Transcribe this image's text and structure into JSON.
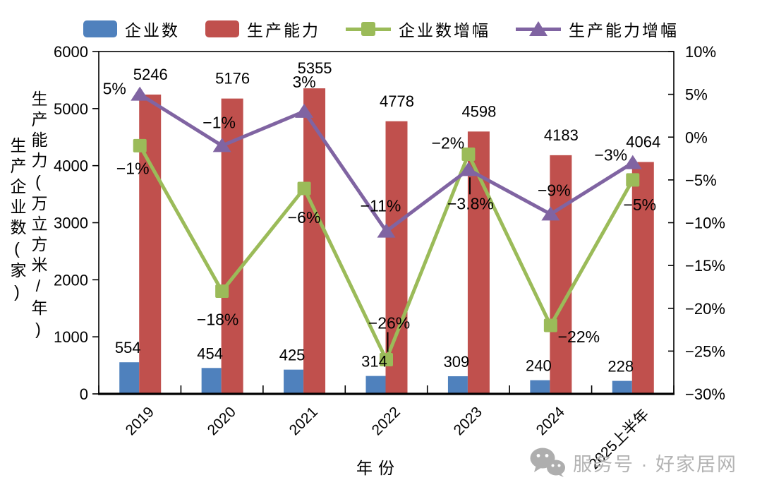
{
  "legend": {
    "items": [
      {
        "label": "企业数",
        "swatch": "bar",
        "color": "#4f81bd"
      },
      {
        "label": "生产能力",
        "swatch": "bar",
        "color": "#c0504d"
      },
      {
        "label": "企业数增幅",
        "swatch": "line-square",
        "color": "#9bbb59"
      },
      {
        "label": "生产能力增幅",
        "swatch": "line-triangle",
        "color": "#8064a2"
      }
    ]
  },
  "chart_data": {
    "type": "bar+line combo, dual axis",
    "categories": [
      "2019",
      "2020",
      "2021",
      "2022",
      "2023",
      "2024",
      "2025上半年"
    ],
    "xlabel": "年份",
    "left_axis": {
      "title_outer": "生产企业数(家)",
      "title_inner": "生产能力(万立方米/年)",
      "min": 0,
      "max": 6000,
      "step": 1000,
      "ticks": [
        "6000",
        "5000",
        "4000",
        "3000",
        "2000",
        "1000",
        "0"
      ]
    },
    "right_axis": {
      "min": -30,
      "max": 10,
      "step": 5,
      "ticks": [
        "10%",
        "5%",
        "0%",
        "−5%",
        "−10%",
        "−15%",
        "−20%",
        "−25%",
        "−30%"
      ]
    },
    "series": [
      {
        "name": "企业数",
        "type": "bar",
        "axis": "left",
        "color": "#4f81bd",
        "values": [
          554,
          454,
          425,
          314,
          309,
          240,
          228
        ],
        "labels": [
          "554",
          "454",
          "425",
          "314",
          "309",
          "240",
          "228"
        ]
      },
      {
        "name": "生产能力",
        "type": "bar",
        "axis": "left",
        "color": "#c0504d",
        "values": [
          5246,
          5176,
          5355,
          4778,
          4598,
          4183,
          4064
        ],
        "labels": [
          "5246",
          "5176",
          "5355",
          "4778",
          "4598",
          "4183",
          "4064"
        ]
      },
      {
        "name": "企业数增幅",
        "type": "line",
        "marker": "square",
        "axis": "right",
        "color": "#9bbb59",
        "values": [
          -1,
          -18,
          -6,
          -26,
          -2,
          -22,
          -5
        ],
        "labels": [
          "−1%",
          "−18%",
          "−6%",
          "−26%",
          "−2%",
          "−22%",
          "−5%"
        ],
        "label_offsets": [
          [
            -10,
            32
          ],
          [
            -6,
            40
          ],
          [
            0,
            41
          ],
          [
            4,
            -52
          ],
          [
            -29,
            -16
          ],
          [
            40,
            16
          ],
          [
            10,
            35
          ]
        ],
        "leaders": [
          0,
          0,
          0,
          1,
          0,
          0,
          0
        ]
      },
      {
        "name": "生产能力增幅",
        "type": "line",
        "marker": "triangle",
        "axis": "right",
        "color": "#8064a2",
        "values": [
          5,
          -1,
          3,
          -11,
          -3.8,
          -9,
          -3
        ],
        "labels": [
          "5%",
          "−1%",
          "3%",
          "−11%",
          "−3.8%",
          "−9%",
          "−3%"
        ],
        "label_offsets": [
          [
            -36,
            -8
          ],
          [
            -4,
            -33
          ],
          [
            0,
            -42
          ],
          [
            -8,
            -36
          ],
          [
            3,
            48
          ],
          [
            5,
            -34
          ],
          [
            -31,
            -11
          ]
        ],
        "leaders": [
          0,
          0,
          0,
          0,
          1,
          0,
          0
        ]
      }
    ],
    "layout": {
      "grid": false,
      "legend_position": "top",
      "x_tick_rotation": -45
    }
  },
  "watermark": {
    "icon": "wechat-icon",
    "text": "服务号 · 好家居网"
  }
}
